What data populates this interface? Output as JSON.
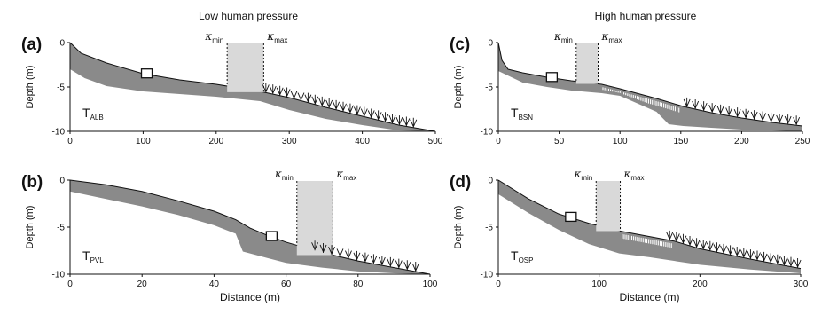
{
  "figure": {
    "col_titles": [
      "Low human pressure",
      "High human pressure"
    ],
    "x_axis_label": "Distance (m)",
    "y_axis_label": "Depth (m)"
  },
  "colors": {
    "band": "#8a8a8a",
    "kappa_box": "#d9d9d9",
    "hatch": "#ffffff",
    "line": "#111111"
  },
  "chart_data": [
    {
      "type": "area",
      "panel": "(a)",
      "transect": "T",
      "transect_sub": "ALB",
      "xlim": [
        0,
        500
      ],
      "ylim": [
        -10,
        0
      ],
      "xticks": [
        0,
        100,
        200,
        300,
        400,
        500
      ],
      "yticks": [
        0,
        -5,
        -10
      ],
      "surface": [
        [
          0,
          0
        ],
        [
          15,
          -1.2
        ],
        [
          50,
          -2.3
        ],
        [
          100,
          -3.5
        ],
        [
          150,
          -4.2
        ],
        [
          200,
          -4.7
        ],
        [
          260,
          -5.5
        ],
        [
          300,
          -6.2
        ],
        [
          350,
          -7.3
        ],
        [
          400,
          -8.3
        ],
        [
          450,
          -9.3
        ],
        [
          500,
          -10
        ]
      ],
      "bottom": [
        [
          0,
          -3
        ],
        [
          20,
          -4
        ],
        [
          50,
          -4.9
        ],
        [
          100,
          -5.5
        ],
        [
          150,
          -5.8
        ],
        [
          200,
          -6.1
        ],
        [
          260,
          -6.6
        ],
        [
          300,
          -7.6
        ],
        [
          350,
          -8.6
        ],
        [
          400,
          -9.3
        ],
        [
          450,
          -9.9
        ],
        [
          500,
          -10
        ]
      ],
      "kappa_min": 215,
      "kappa_max": 265,
      "kappa_min_label": "κ",
      "kappa_min_sub": "min",
      "kappa_max_label": "κ",
      "kappa_max_sub": "max",
      "square_x": 105,
      "plants": {
        "from": 268,
        "to": 470,
        "n": 22
      },
      "hatch": null
    },
    {
      "type": "area",
      "panel": "(b)",
      "transect": "T",
      "transect_sub": "PVL",
      "xlim": [
        0,
        100
      ],
      "ylim": [
        -10,
        0
      ],
      "xticks": [
        0,
        20,
        40,
        60,
        80,
        100
      ],
      "yticks": [
        0,
        -5,
        -10
      ],
      "surface": [
        [
          0,
          0
        ],
        [
          10,
          -0.5
        ],
        [
          20,
          -1.2
        ],
        [
          30,
          -2.2
        ],
        [
          40,
          -3.3
        ],
        [
          46,
          -4.2
        ],
        [
          50,
          -5.1
        ],
        [
          55,
          -5.9
        ],
        [
          60,
          -6.6
        ],
        [
          70,
          -7.7
        ],
        [
          80,
          -8.6
        ],
        [
          90,
          -9.3
        ],
        [
          100,
          -10
        ]
      ],
      "bottom": [
        [
          0,
          -1.2
        ],
        [
          10,
          -2
        ],
        [
          20,
          -2.8
        ],
        [
          30,
          -3.7
        ],
        [
          40,
          -4.8
        ],
        [
          46,
          -5.7
        ],
        [
          48,
          -7.6
        ],
        [
          55,
          -8.3
        ],
        [
          60,
          -8.8
        ],
        [
          70,
          -9.3
        ],
        [
          80,
          -9.7
        ],
        [
          90,
          -9.9
        ],
        [
          100,
          -10
        ]
      ],
      "kappa_min": 63,
      "kappa_max": 73,
      "kappa_min_label": "κ",
      "kappa_min_sub": "min",
      "kappa_max_label": "κ",
      "kappa_max_sub": "max",
      "square_x": 56,
      "plants": {
        "from": 68,
        "to": 96,
        "n": 13
      },
      "hatch": null
    },
    {
      "type": "area",
      "panel": "(c)",
      "transect": "T",
      "transect_sub": "BSN",
      "xlim": [
        0,
        250
      ],
      "ylim": [
        -10,
        0
      ],
      "xticks": [
        0,
        50,
        100,
        150,
        200,
        250
      ],
      "yticks": [
        0,
        -5,
        -10
      ],
      "surface": [
        [
          0,
          0
        ],
        [
          3,
          -2
        ],
        [
          8,
          -3
        ],
        [
          20,
          -3.4
        ],
        [
          40,
          -3.9
        ],
        [
          60,
          -4.3
        ],
        [
          85,
          -4.7
        ],
        [
          100,
          -5.2
        ],
        [
          130,
          -6.3
        ],
        [
          152,
          -7.2
        ],
        [
          175,
          -7.9
        ],
        [
          200,
          -8.5
        ],
        [
          225,
          -9
        ],
        [
          250,
          -9.4
        ]
      ],
      "bottom": [
        [
          0,
          -3.2
        ],
        [
          20,
          -4.5
        ],
        [
          40,
          -5
        ],
        [
          60,
          -5.4
        ],
        [
          85,
          -5.7
        ],
        [
          100,
          -6
        ],
        [
          130,
          -7.8
        ],
        [
          140,
          -9.2
        ],
        [
          152,
          -9.4
        ],
        [
          175,
          -9.6
        ],
        [
          200,
          -9.8
        ],
        [
          225,
          -9.9
        ],
        [
          250,
          -10
        ]
      ],
      "kappa_min": 64,
      "kappa_max": 82,
      "kappa_min_label": "κ",
      "kappa_min_sub": "min",
      "kappa_max_label": "κ",
      "kappa_max_sub": "max",
      "square_x": 44,
      "plants": {
        "from": 155,
        "to": 245,
        "n": 14
      },
      "hatch": {
        "from": 86,
        "to": 150
      }
    },
    {
      "type": "area",
      "panel": "(d)",
      "transect": "T",
      "transect_sub": "OSP",
      "xlim": [
        0,
        300
      ],
      "ylim": [
        -10,
        0
      ],
      "xticks": [
        0,
        100,
        200,
        300
      ],
      "yticks": [
        0,
        -5,
        -10
      ],
      "surface": [
        [
          0,
          0
        ],
        [
          30,
          -2
        ],
        [
          60,
          -3.6
        ],
        [
          90,
          -4.6
        ],
        [
          120,
          -5.4
        ],
        [
          150,
          -6
        ],
        [
          175,
          -6.5
        ],
        [
          200,
          -7.3
        ],
        [
          250,
          -8.4
        ],
        [
          300,
          -9.4
        ]
      ],
      "bottom": [
        [
          0,
          -1.5
        ],
        [
          30,
          -3.5
        ],
        [
          60,
          -5.3
        ],
        [
          90,
          -6.8
        ],
        [
          120,
          -7.8
        ],
        [
          150,
          -8.2
        ],
        [
          175,
          -8.6
        ],
        [
          200,
          -9
        ],
        [
          250,
          -9.5
        ],
        [
          300,
          -9.9
        ]
      ],
      "kappa_min": 97,
      "kappa_max": 121,
      "kappa_min_label": "κ",
      "kappa_min_sub": "min",
      "kappa_max_label": "κ",
      "kappa_max_sub": "max",
      "square_x": 72,
      "plants": {
        "from": 170,
        "to": 297,
        "n": 20
      },
      "hatch": {
        "from": 123,
        "to": 173
      }
    }
  ]
}
